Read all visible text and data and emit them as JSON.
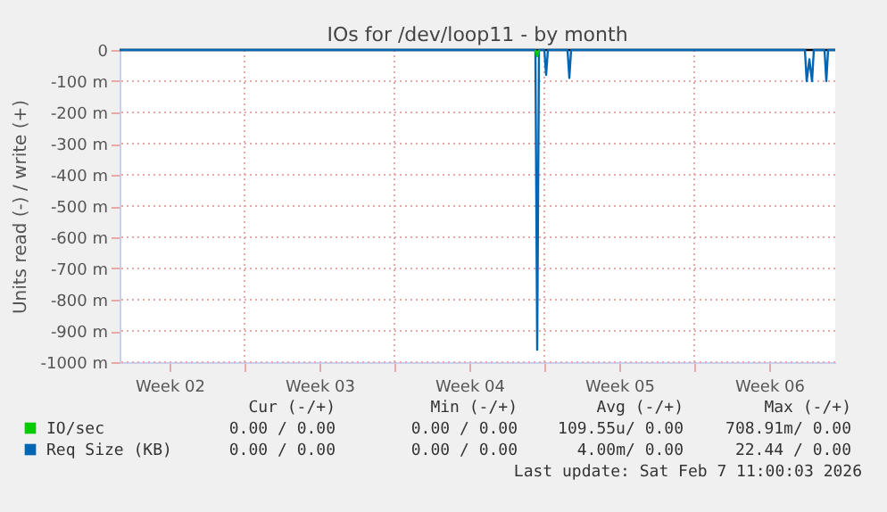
{
  "chart_data": {
    "type": "line",
    "title": "IOs for /dev/loop11 - by month",
    "ylabel": "Units read (-) / write (+)",
    "series": [
      {
        "name": "Req Size (KB)",
        "color": "#0066b3",
        "x": [
          "2026-01-05T01:00",
          "2026-01-24T11:00",
          "2026-01-24T13:00",
          "2026-01-24T15:00",
          "2026-01-24T21:00",
          "2026-01-24T23:00",
          "2026-01-25T01:00",
          "2026-01-25T23:00",
          "2026-01-26T01:00",
          "2026-01-26T03:00",
          "2026-02-06T01:00",
          "2026-02-06T03:00",
          "2026-02-06T06:00",
          "2026-02-06T09:00",
          "2026-02-06T11:00",
          "2026-02-06T23:00",
          "2026-02-07T01:00",
          "2026-02-07T03:00",
          "2026-02-07T11:00"
        ],
        "values": [
          0,
          0,
          -960,
          0,
          0,
          -80,
          0,
          0,
          -90,
          0,
          0,
          -100,
          -30,
          -100,
          0,
          0,
          -100,
          0,
          0
        ]
      },
      {
        "name": "IO/sec",
        "color": "#00cc00",
        "x": [
          "2026-01-24T11:00",
          "2026-01-24T13:00",
          "2026-01-24T15:00"
        ],
        "values": [
          0,
          -20,
          0
        ]
      }
    ],
    "xlim": [
      "2026-01-05T01:00",
      "2026-02-07T11:00"
    ],
    "xticks": [
      {
        "value": "2026-01-07T09:00",
        "label": "Week 02"
      },
      {
        "value": "2026-01-10T21:00",
        "label": null
      },
      {
        "value": "2026-01-14T09:00",
        "label": "Week 03"
      },
      {
        "value": "2026-01-17T21:00",
        "label": null
      },
      {
        "value": "2026-01-21T09:00",
        "label": "Week 04"
      },
      {
        "value": "2026-01-24T21:00",
        "label": null
      },
      {
        "value": "2026-01-28T09:00",
        "label": "Week 05"
      },
      {
        "value": "2026-01-31T21:00",
        "label": null
      },
      {
        "value": "2026-02-04T09:00",
        "label": "Week 06"
      }
    ],
    "ylim": [
      -1000,
      0
    ],
    "yticks": [
      0,
      {
        "value": -100,
        "label": "-100 m"
      },
      {
        "value": -200,
        "label": "-200 m"
      },
      {
        "value": -300,
        "label": "-300 m"
      },
      {
        "value": -400,
        "label": "-400 m"
      },
      {
        "value": -500,
        "label": "-500 m"
      },
      {
        "value": -600,
        "label": "-600 m"
      },
      {
        "value": -700,
        "label": "-700 m"
      },
      {
        "value": -800,
        "label": "-800 m"
      },
      {
        "value": -900,
        "label": "-900 m"
      },
      {
        "value": -1000,
        "label": "-1000 m"
      }
    ],
    "ref_lines": [
      {
        "axis": "y",
        "value": 0,
        "color": "#000000"
      }
    ],
    "grid": true,
    "legend": "bottom",
    "annotations": [
      "Cur (-/+)",
      "Min (-/+)",
      "Avg (-/+)",
      "Max (-/+)",
      "0.00 / 0.00",
      "0.00 / 0.00",
      "109.55u/ 0.00",
      "708.91m/ 0.00",
      "0.00 / 0.00",
      "0.00 / 0.00",
      "4.00m/ 0.00",
      "22.44 / 0.00",
      "Last update: Sat Feb  7 11:00:03 2026"
    ]
  }
}
